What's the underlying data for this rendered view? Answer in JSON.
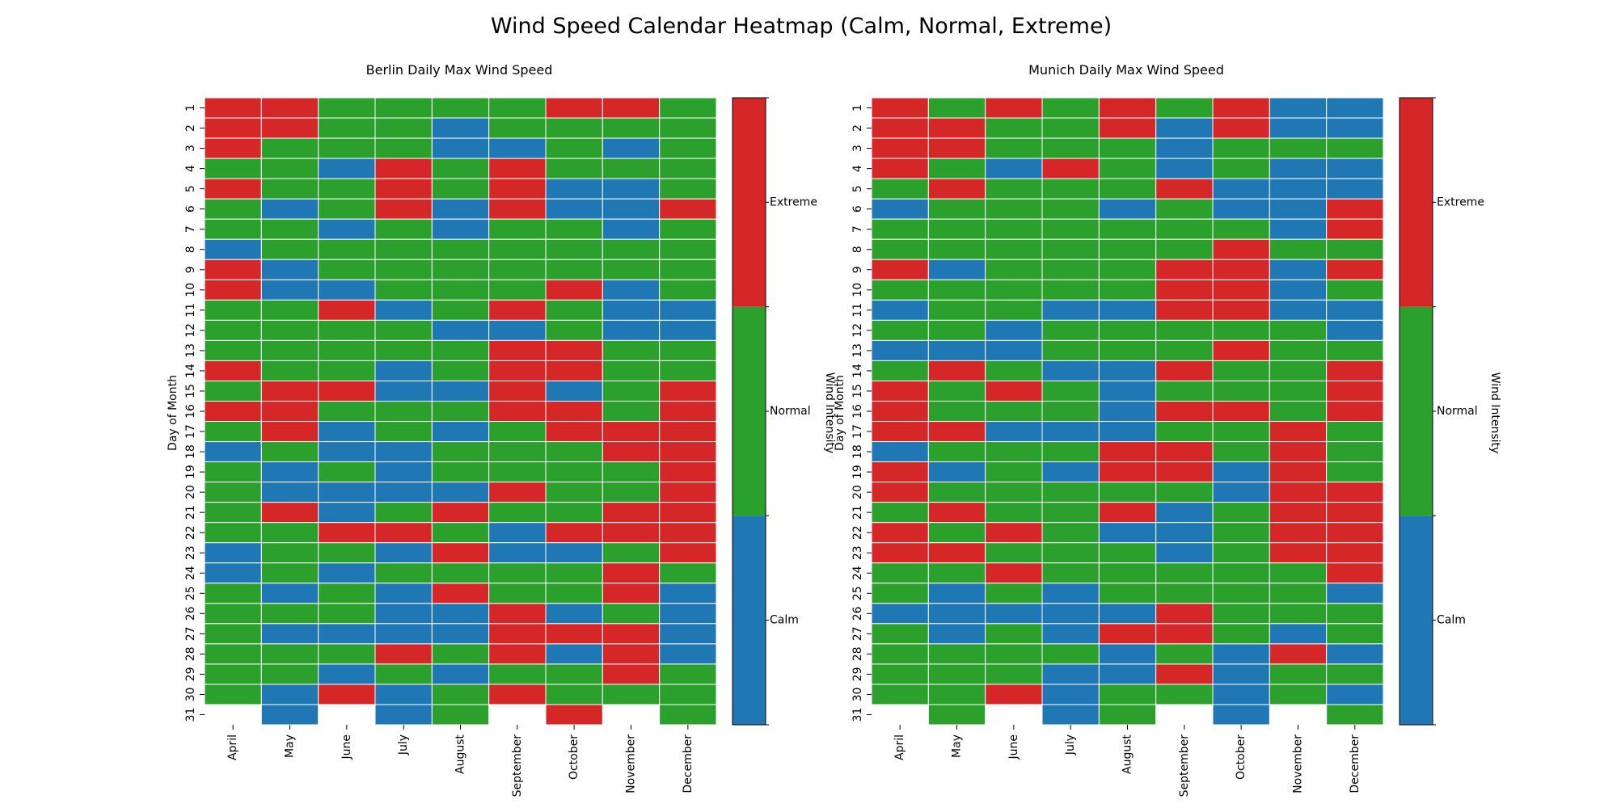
{
  "figure_title": "Wind Speed Calendar Heatmap (Calm, Normal, Extreme)",
  "colors": {
    "Calm": "#1f77b4",
    "Normal": "#2ca02c",
    "Extreme": "#d62728",
    "grid": "#ffffff"
  },
  "chart_data": [
    {
      "type": "heatmap",
      "title": "Berlin Daily Max Wind Speed",
      "xlabel": "",
      "ylabel": "Day of Month",
      "months": [
        "April",
        "May",
        "June",
        "July",
        "August",
        "September",
        "October",
        "November",
        "December"
      ],
      "days": [
        1,
        2,
        3,
        4,
        5,
        6,
        7,
        8,
        9,
        10,
        11,
        12,
        13,
        14,
        15,
        16,
        17,
        18,
        19,
        20,
        21,
        22,
        23,
        24,
        25,
        26,
        27,
        28,
        29,
        30,
        31
      ],
      "categories": [
        "Calm",
        "Normal",
        "Extreme"
      ],
      "colorbar_label": "",
      "values": [
        [
          "Extreme",
          "Extreme",
          "Normal",
          "Normal",
          "Normal",
          "Normal",
          "Extreme",
          "Extreme",
          "Normal"
        ],
        [
          "Extreme",
          "Extreme",
          "Normal",
          "Normal",
          "Calm",
          "Normal",
          "Normal",
          "Normal",
          "Normal"
        ],
        [
          "Extreme",
          "Normal",
          "Normal",
          "Normal",
          "Calm",
          "Calm",
          "Normal",
          "Calm",
          "Normal"
        ],
        [
          "Normal",
          "Normal",
          "Calm",
          "Extreme",
          "Normal",
          "Extreme",
          "Normal",
          "Normal",
          "Normal"
        ],
        [
          "Extreme",
          "Normal",
          "Normal",
          "Extreme",
          "Normal",
          "Extreme",
          "Calm",
          "Calm",
          "Normal"
        ],
        [
          "Normal",
          "Calm",
          "Normal",
          "Extreme",
          "Calm",
          "Extreme",
          "Calm",
          "Calm",
          "Extreme"
        ],
        [
          "Normal",
          "Normal",
          "Calm",
          "Normal",
          "Calm",
          "Normal",
          "Normal",
          "Calm",
          "Normal"
        ],
        [
          "Calm",
          "Normal",
          "Normal",
          "Normal",
          "Normal",
          "Normal",
          "Normal",
          "Normal",
          "Normal"
        ],
        [
          "Extreme",
          "Calm",
          "Normal",
          "Normal",
          "Normal",
          "Normal",
          "Normal",
          "Normal",
          "Normal"
        ],
        [
          "Extreme",
          "Calm",
          "Calm",
          "Normal",
          "Normal",
          "Normal",
          "Extreme",
          "Calm",
          "Normal"
        ],
        [
          "Normal",
          "Normal",
          "Extreme",
          "Calm",
          "Normal",
          "Extreme",
          "Normal",
          "Calm",
          "Calm"
        ],
        [
          "Normal",
          "Normal",
          "Normal",
          "Normal",
          "Calm",
          "Calm",
          "Normal",
          "Calm",
          "Calm"
        ],
        [
          "Normal",
          "Normal",
          "Normal",
          "Normal",
          "Normal",
          "Extreme",
          "Extreme",
          "Normal",
          "Normal"
        ],
        [
          "Extreme",
          "Normal",
          "Normal",
          "Calm",
          "Normal",
          "Extreme",
          "Extreme",
          "Normal",
          "Normal"
        ],
        [
          "Normal",
          "Extreme",
          "Extreme",
          "Calm",
          "Calm",
          "Extreme",
          "Calm",
          "Normal",
          "Extreme"
        ],
        [
          "Extreme",
          "Extreme",
          "Normal",
          "Normal",
          "Normal",
          "Extreme",
          "Extreme",
          "Normal",
          "Extreme"
        ],
        [
          "Normal",
          "Extreme",
          "Calm",
          "Normal",
          "Calm",
          "Normal",
          "Extreme",
          "Extreme",
          "Extreme"
        ],
        [
          "Calm",
          "Normal",
          "Calm",
          "Calm",
          "Normal",
          "Normal",
          "Normal",
          "Extreme",
          "Extreme"
        ],
        [
          "Normal",
          "Calm",
          "Normal",
          "Calm",
          "Normal",
          "Normal",
          "Normal",
          "Normal",
          "Extreme"
        ],
        [
          "Normal",
          "Calm",
          "Calm",
          "Calm",
          "Calm",
          "Extreme",
          "Normal",
          "Normal",
          "Extreme"
        ],
        [
          "Normal",
          "Extreme",
          "Calm",
          "Normal",
          "Extreme",
          "Normal",
          "Normal",
          "Extreme",
          "Extreme"
        ],
        [
          "Normal",
          "Normal",
          "Extreme",
          "Extreme",
          "Normal",
          "Calm",
          "Extreme",
          "Extreme",
          "Extreme"
        ],
        [
          "Calm",
          "Normal",
          "Normal",
          "Calm",
          "Extreme",
          "Calm",
          "Calm",
          "Normal",
          "Extreme"
        ],
        [
          "Calm",
          "Normal",
          "Calm",
          "Normal",
          "Normal",
          "Normal",
          "Normal",
          "Extreme",
          "Normal"
        ],
        [
          "Normal",
          "Calm",
          "Normal",
          "Calm",
          "Extreme",
          "Normal",
          "Normal",
          "Extreme",
          "Calm"
        ],
        [
          "Normal",
          "Normal",
          "Normal",
          "Calm",
          "Calm",
          "Extreme",
          "Calm",
          "Normal",
          "Calm"
        ],
        [
          "Normal",
          "Calm",
          "Calm",
          "Calm",
          "Calm",
          "Extreme",
          "Extreme",
          "Extreme",
          "Calm"
        ],
        [
          "Normal",
          "Normal",
          "Normal",
          "Extreme",
          "Normal",
          "Extreme",
          "Calm",
          "Extreme",
          "Calm"
        ],
        [
          "Normal",
          "Normal",
          "Calm",
          "Normal",
          "Calm",
          "Normal",
          "Normal",
          "Extreme",
          "Normal"
        ],
        [
          "Normal",
          "Calm",
          "Extreme",
          "Calm",
          "Normal",
          "Extreme",
          "Normal",
          "Normal",
          "Normal"
        ],
        [
          null,
          "Calm",
          null,
          "Calm",
          "Normal",
          null,
          "Extreme",
          null,
          "Normal"
        ]
      ]
    },
    {
      "type": "heatmap",
      "title": "Munich Daily Max Wind Speed",
      "xlabel": "",
      "ylabel": "Day of Month",
      "months": [
        "April",
        "May",
        "June",
        "July",
        "August",
        "September",
        "October",
        "November",
        "December"
      ],
      "days": [
        1,
        2,
        3,
        4,
        5,
        6,
        7,
        8,
        9,
        10,
        11,
        12,
        13,
        14,
        15,
        16,
        17,
        18,
        19,
        20,
        21,
        22,
        23,
        24,
        25,
        26,
        27,
        28,
        29,
        30,
        31
      ],
      "categories": [
        "Calm",
        "Normal",
        "Extreme"
      ],
      "colorbar_label": "Wind Intensity",
      "extra_label": "Wind Intensity",
      "values": [
        [
          "Extreme",
          "Normal",
          "Extreme",
          "Normal",
          "Extreme",
          "Normal",
          "Extreme",
          "Calm",
          "Calm"
        ],
        [
          "Extreme",
          "Extreme",
          "Normal",
          "Normal",
          "Extreme",
          "Calm",
          "Extreme",
          "Calm",
          "Calm"
        ],
        [
          "Extreme",
          "Extreme",
          "Normal",
          "Normal",
          "Normal",
          "Calm",
          "Normal",
          "Normal",
          "Normal"
        ],
        [
          "Extreme",
          "Normal",
          "Calm",
          "Extreme",
          "Normal",
          "Calm",
          "Normal",
          "Calm",
          "Calm"
        ],
        [
          "Normal",
          "Extreme",
          "Normal",
          "Normal",
          "Normal",
          "Extreme",
          "Calm",
          "Calm",
          "Calm"
        ],
        [
          "Calm",
          "Normal",
          "Normal",
          "Normal",
          "Calm",
          "Normal",
          "Calm",
          "Calm",
          "Extreme"
        ],
        [
          "Normal",
          "Normal",
          "Normal",
          "Normal",
          "Normal",
          "Normal",
          "Normal",
          "Calm",
          "Extreme"
        ],
        [
          "Normal",
          "Normal",
          "Normal",
          "Normal",
          "Normal",
          "Normal",
          "Extreme",
          "Normal",
          "Normal"
        ],
        [
          "Extreme",
          "Calm",
          "Normal",
          "Normal",
          "Normal",
          "Extreme",
          "Extreme",
          "Calm",
          "Extreme"
        ],
        [
          "Normal",
          "Normal",
          "Normal",
          "Normal",
          "Normal",
          "Extreme",
          "Extreme",
          "Calm",
          "Normal"
        ],
        [
          "Calm",
          "Normal",
          "Normal",
          "Calm",
          "Calm",
          "Extreme",
          "Extreme",
          "Calm",
          "Calm"
        ],
        [
          "Normal",
          "Normal",
          "Calm",
          "Normal",
          "Normal",
          "Normal",
          "Normal",
          "Normal",
          "Calm"
        ],
        [
          "Calm",
          "Calm",
          "Calm",
          "Normal",
          "Normal",
          "Normal",
          "Extreme",
          "Normal",
          "Normal"
        ],
        [
          "Normal",
          "Extreme",
          "Normal",
          "Calm",
          "Calm",
          "Extreme",
          "Normal",
          "Normal",
          "Extreme"
        ],
        [
          "Extreme",
          "Normal",
          "Extreme",
          "Normal",
          "Calm",
          "Normal",
          "Normal",
          "Normal",
          "Extreme"
        ],
        [
          "Extreme",
          "Normal",
          "Normal",
          "Normal",
          "Calm",
          "Extreme",
          "Extreme",
          "Normal",
          "Extreme"
        ],
        [
          "Extreme",
          "Extreme",
          "Calm",
          "Calm",
          "Calm",
          "Normal",
          "Normal",
          "Extreme",
          "Normal"
        ],
        [
          "Calm",
          "Normal",
          "Normal",
          "Normal",
          "Extreme",
          "Extreme",
          "Normal",
          "Extreme",
          "Normal"
        ],
        [
          "Extreme",
          "Calm",
          "Normal",
          "Calm",
          "Extreme",
          "Extreme",
          "Calm",
          "Extreme",
          "Normal"
        ],
        [
          "Extreme",
          "Normal",
          "Normal",
          "Normal",
          "Normal",
          "Normal",
          "Calm",
          "Extreme",
          "Extreme"
        ],
        [
          "Normal",
          "Extreme",
          "Normal",
          "Normal",
          "Extreme",
          "Calm",
          "Normal",
          "Extreme",
          "Extreme"
        ],
        [
          "Extreme",
          "Normal",
          "Extreme",
          "Normal",
          "Calm",
          "Calm",
          "Normal",
          "Extreme",
          "Extreme"
        ],
        [
          "Extreme",
          "Extreme",
          "Normal",
          "Normal",
          "Normal",
          "Calm",
          "Normal",
          "Extreme",
          "Extreme"
        ],
        [
          "Normal",
          "Normal",
          "Extreme",
          "Normal",
          "Normal",
          "Normal",
          "Normal",
          "Normal",
          "Extreme"
        ],
        [
          "Normal",
          "Calm",
          "Normal",
          "Calm",
          "Normal",
          "Normal",
          "Normal",
          "Normal",
          "Calm"
        ],
        [
          "Calm",
          "Calm",
          "Calm",
          "Calm",
          "Calm",
          "Extreme",
          "Normal",
          "Normal",
          "Normal"
        ],
        [
          "Normal",
          "Calm",
          "Normal",
          "Calm",
          "Extreme",
          "Extreme",
          "Normal",
          "Calm",
          "Normal"
        ],
        [
          "Normal",
          "Normal",
          "Normal",
          "Normal",
          "Calm",
          "Normal",
          "Calm",
          "Extreme",
          "Calm"
        ],
        [
          "Normal",
          "Normal",
          "Normal",
          "Calm",
          "Calm",
          "Extreme",
          "Calm",
          "Normal",
          "Normal"
        ],
        [
          "Normal",
          "Normal",
          "Extreme",
          "Calm",
          "Normal",
          "Normal",
          "Calm",
          "Normal",
          "Calm"
        ],
        [
          null,
          "Normal",
          null,
          "Calm",
          "Normal",
          null,
          "Calm",
          null,
          "Normal"
        ]
      ]
    }
  ]
}
